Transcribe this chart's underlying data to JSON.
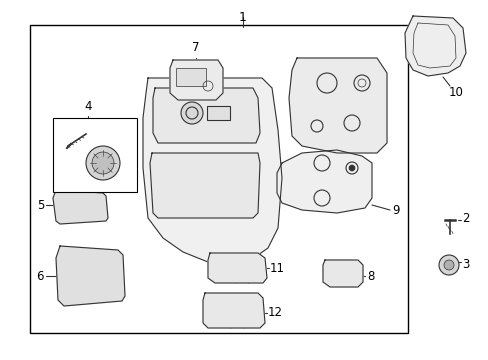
{
  "background_color": "#ffffff",
  "border_color": "#000000",
  "line_color": "#333333",
  "fig_width": 4.89,
  "fig_height": 3.6,
  "dpi": 100
}
